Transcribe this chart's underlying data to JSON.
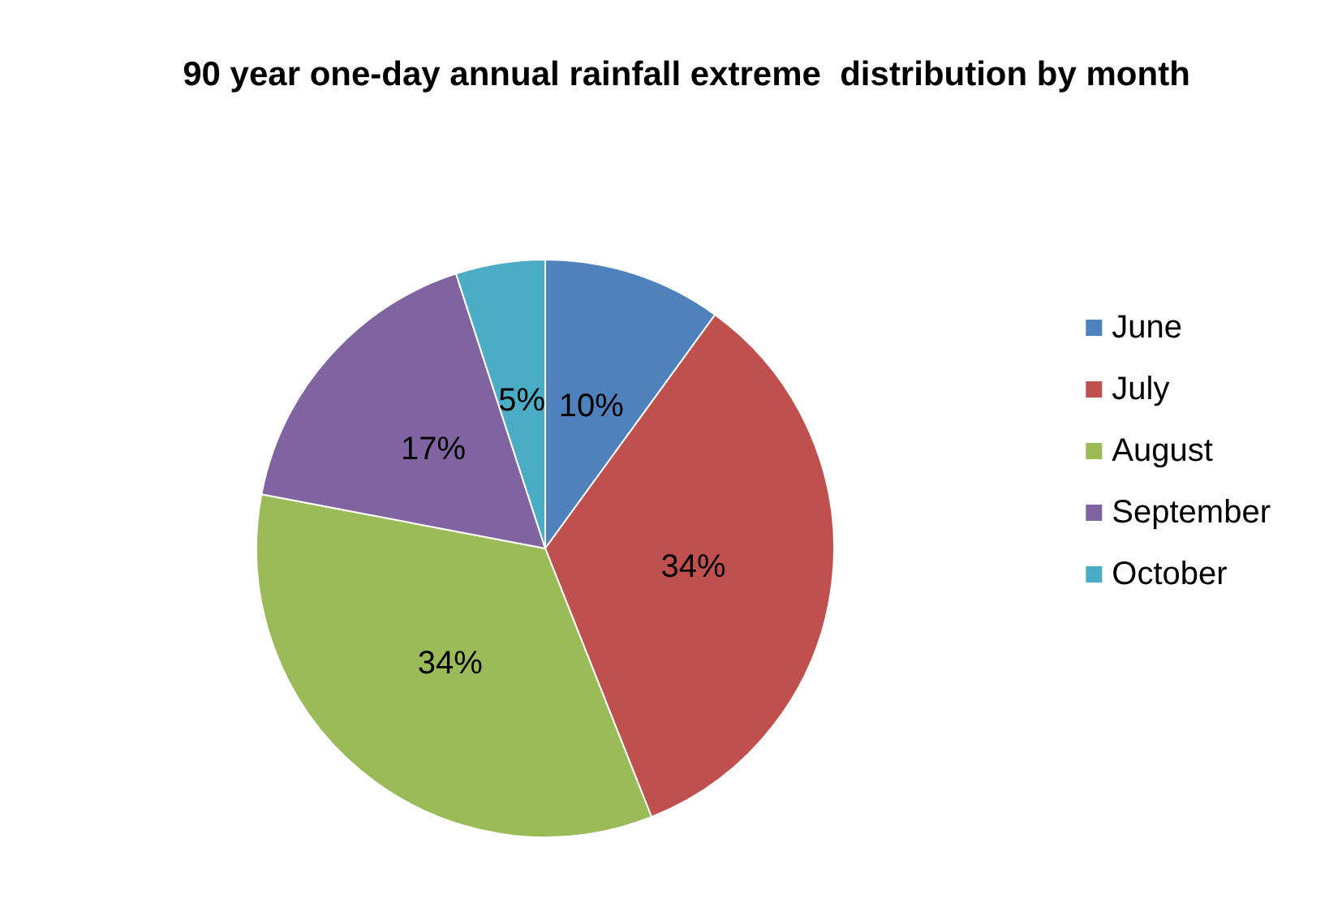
{
  "chart_data": {
    "type": "pie",
    "title": "90 year one-day annual rainfall extreme  distribution by month",
    "categories": [
      "June",
      "July",
      "August",
      "September",
      "October"
    ],
    "values": [
      10,
      34,
      34,
      17,
      5
    ],
    "value_labels": [
      "10%",
      "34%",
      "34%",
      "17%",
      "5%"
    ],
    "colors": [
      "#4f81bd",
      "#c0504d",
      "#9bbb59",
      "#8064a2",
      "#4bacc6"
    ],
    "legend": "right"
  }
}
